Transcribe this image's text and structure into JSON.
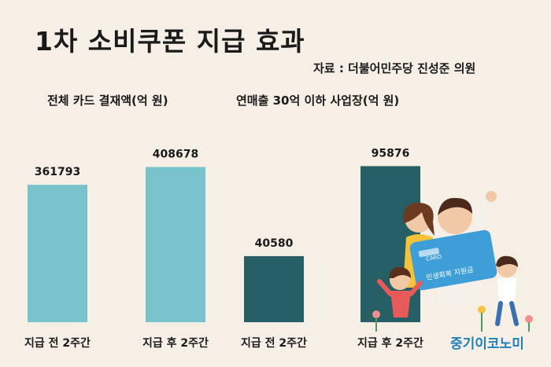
{
  "title": "1차 소비쿠폰 지급 효과",
  "source": "자료 : 더불어민주당 진성준 의원",
  "brand": "중기이코노미",
  "card": {
    "label": "CARD",
    "text": "민생회복 지원금"
  },
  "colors": {
    "light": "#79c3cc",
    "dark": "#265f63",
    "bg": "#f6efe6"
  },
  "chart_data": [
    {
      "type": "bar",
      "title": "전체 카드 결재액(억 원)",
      "categories": [
        "지급 전 2주간",
        "지급 후 2주간"
      ],
      "values": [
        361793,
        408678
      ],
      "value_labels": [
        "361793",
        "408678"
      ],
      "ylim": [
        0,
        480000
      ]
    },
    {
      "type": "bar",
      "title": "연매출 30억 이하 사업장(억 원)",
      "categories": [
        "지급 전 2주간",
        "지급 후 2주간"
      ],
      "values": [
        40580,
        95876
      ],
      "value_labels": [
        "40580",
        "95876"
      ],
      "ylim": [
        0,
        112000
      ]
    }
  ]
}
